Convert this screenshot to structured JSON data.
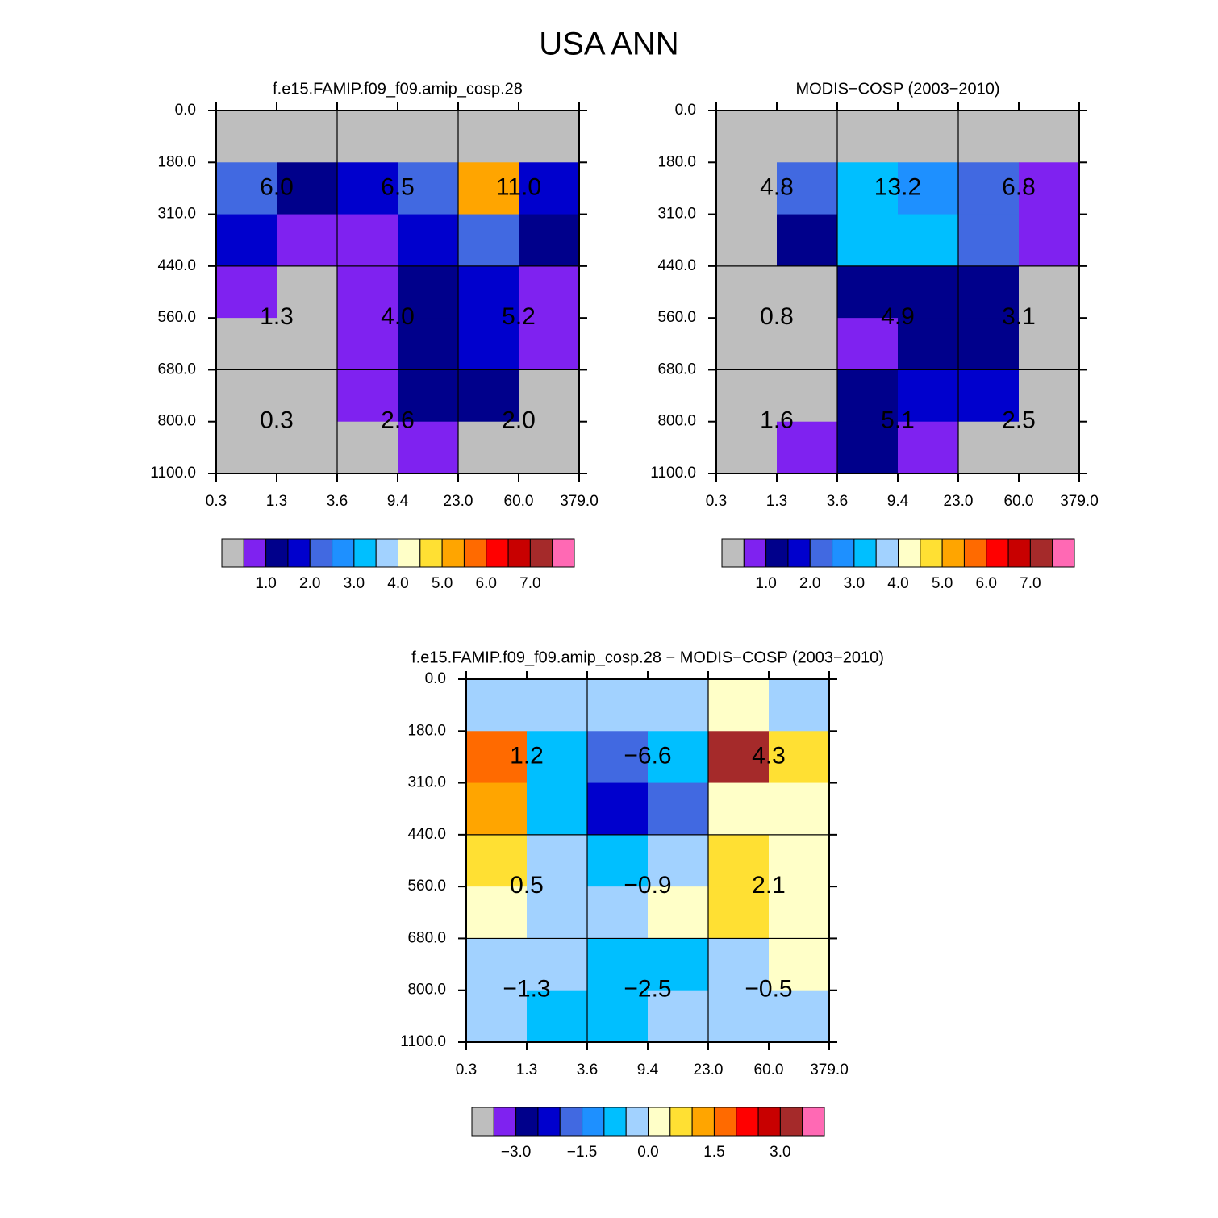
{
  "title": "USA ANN",
  "chart_data": [
    {
      "type": "heatmap",
      "title": "f.e15.FAMIP.f09_f09.amip_cosp.28",
      "x_edges": [
        "0.3",
        "1.3",
        "3.6",
        "9.4",
        "23.0",
        "60.0",
        "379.0"
      ],
      "y_edges": [
        "0.0",
        "180.0",
        "310.0",
        "440.0",
        "560.0",
        "680.0",
        "800.0",
        "1100.0"
      ],
      "values": [
        [
          0.25,
          0.25,
          0.25,
          0.25,
          0.25,
          0.25
        ],
        [
          2.25,
          1.25,
          1.75,
          2.25,
          5.25,
          1.75
        ],
        [
          1.75,
          0.75,
          0.75,
          1.75,
          2.25,
          1.25
        ],
        [
          0.75,
          0.25,
          0.75,
          1.25,
          1.75,
          0.75
        ],
        [
          0.25,
          0.25,
          0.75,
          1.25,
          1.75,
          0.75
        ],
        [
          0.25,
          0.25,
          0.75,
          1.25,
          1.25,
          0.25
        ],
        [
          0.25,
          0.25,
          0.25,
          0.75,
          0.25,
          0.25
        ]
      ],
      "annotations": {
        "values": [
          [
            6.0,
            6.5,
            11.0
          ],
          [
            1.3,
            4.0,
            5.2
          ],
          [
            0.3,
            2.6,
            2.0
          ]
        ],
        "value_labels": [
          [
            "6.0",
            "6.5",
            "11.0"
          ],
          [
            "1.3",
            "4.0",
            "5.2"
          ],
          [
            "0.3",
            "2.6",
            "2.0"
          ]
        ]
      },
      "colorbar": {
        "levels": [
          0.5,
          1.0,
          1.5,
          2.0,
          2.5,
          3.0,
          3.5,
          4.0,
          4.5,
          5.0,
          5.5,
          6.0,
          6.5,
          7.0,
          7.5
        ],
        "colors": [
          "#bebebe",
          "#7f22f0",
          "#00008b",
          "#0000cd",
          "#4169e1",
          "#1e90ff",
          "#00bfff",
          "#a2d2ff",
          "#ffffc8",
          "#ffe033",
          "#ffa500",
          "#ff6a00",
          "#ff0000",
          "#c80000",
          "#a52a2a",
          "#ff69b4"
        ],
        "ticks": [
          {
            "value": 1,
            "label": "1.0"
          },
          {
            "value": 2,
            "label": "2.0"
          },
          {
            "value": 3,
            "label": "3.0"
          },
          {
            "value": 4,
            "label": "4.0"
          },
          {
            "value": 5,
            "label": "5.0"
          },
          {
            "value": 6,
            "label": "6.0"
          },
          {
            "value": 7,
            "label": "7.0"
          }
        ]
      }
    },
    {
      "type": "heatmap",
      "title": "MODIS−COSP (2003−2010)",
      "x_edges": [
        "0.3",
        "1.3",
        "3.6",
        "9.4",
        "23.0",
        "60.0",
        "379.0"
      ],
      "y_edges": [
        "0.0",
        "180.0",
        "310.0",
        "440.0",
        "560.0",
        "680.0",
        "800.0",
        "1100.0"
      ],
      "values": [
        [
          0.25,
          0.25,
          0.25,
          0.25,
          0.25,
          0.25
        ],
        [
          0.25,
          2.25,
          3.25,
          2.75,
          2.25,
          0.75
        ],
        [
          0.25,
          1.25,
          3.25,
          3.25,
          2.25,
          0.75
        ],
        [
          0.25,
          0.25,
          1.25,
          1.25,
          1.25,
          0.25
        ],
        [
          0.25,
          0.25,
          0.75,
          1.25,
          1.25,
          0.25
        ],
        [
          0.25,
          0.25,
          1.25,
          1.75,
          1.75,
          0.25
        ],
        [
          0.25,
          0.75,
          1.25,
          0.75,
          0.25,
          0.25
        ]
      ],
      "annotations": {
        "values": [
          [
            4.8,
            13.2,
            6.8
          ],
          [
            0.8,
            4.9,
            3.1
          ],
          [
            1.6,
            5.1,
            2.5
          ]
        ],
        "value_labels": [
          [
            "4.8",
            "13.2",
            "6.8"
          ],
          [
            "0.8",
            "4.9",
            "3.1"
          ],
          [
            "1.6",
            "5.1",
            "2.5"
          ]
        ]
      },
      "colorbar": {
        "levels": [
          0.5,
          1.0,
          1.5,
          2.0,
          2.5,
          3.0,
          3.5,
          4.0,
          4.5,
          5.0,
          5.5,
          6.0,
          6.5,
          7.0,
          7.5
        ],
        "colors": [
          "#bebebe",
          "#7f22f0",
          "#00008b",
          "#0000cd",
          "#4169e1",
          "#1e90ff",
          "#00bfff",
          "#a2d2ff",
          "#ffffc8",
          "#ffe033",
          "#ffa500",
          "#ff6a00",
          "#ff0000",
          "#c80000",
          "#a52a2a",
          "#ff69b4"
        ],
        "ticks": [
          {
            "value": 1,
            "label": "1.0"
          },
          {
            "value": 2,
            "label": "2.0"
          },
          {
            "value": 3,
            "label": "3.0"
          },
          {
            "value": 4,
            "label": "4.0"
          },
          {
            "value": 5,
            "label": "5.0"
          },
          {
            "value": 6,
            "label": "6.0"
          },
          {
            "value": 7,
            "label": "7.0"
          }
        ]
      }
    },
    {
      "type": "heatmap",
      "title": "f.e15.FAMIP.f09_f09.amip_cosp.28 − MODIS−COSP (2003−2010)",
      "x_edges": [
        "0.3",
        "1.3",
        "3.6",
        "9.4",
        "23.0",
        "60.0",
        "379.0"
      ],
      "y_edges": [
        "0.0",
        "180.0",
        "310.0",
        "440.0",
        "560.0",
        "680.0",
        "800.0",
        "1100.0"
      ],
      "values": [
        [
          -0.25,
          -0.25,
          -0.25,
          -0.25,
          0.25,
          -0.25
        ],
        [
          1.75,
          -0.75,
          -1.75,
          -0.75,
          3.25,
          0.75
        ],
        [
          1.25,
          -0.75,
          -2.25,
          -1.75,
          0.25,
          0.25
        ],
        [
          0.75,
          -0.25,
          -0.75,
          -0.25,
          0.75,
          0.25
        ],
        [
          0.25,
          -0.25,
          -0.25,
          0.25,
          0.75,
          0.25
        ],
        [
          -0.25,
          -0.25,
          -0.75,
          -0.75,
          -0.25,
          0.25
        ],
        [
          -0.25,
          -0.75,
          -0.75,
          -0.25,
          -0.25,
          -0.25
        ]
      ],
      "annotations": {
        "values": [
          [
            1.2,
            -6.6,
            4.3
          ],
          [
            0.5,
            -0.9,
            2.1
          ],
          [
            -1.3,
            -2.5,
            -0.5
          ]
        ],
        "value_labels": [
          [
            "1.2",
            "−6.6",
            "4.3"
          ],
          [
            "0.5",
            "−0.9",
            "2.1"
          ],
          [
            "−1.3",
            "−2.5",
            "−0.5"
          ]
        ]
      },
      "colorbar": {
        "levels": [
          -3.5,
          -3.0,
          -2.5,
          -2.0,
          -1.5,
          -1.0,
          -0.5,
          0.0,
          0.5,
          1.0,
          1.5,
          2.0,
          2.5,
          3.0,
          3.5
        ],
        "colors": [
          "#bebebe",
          "#7f22f0",
          "#00008b",
          "#0000cd",
          "#4169e1",
          "#1e90ff",
          "#00bfff",
          "#a2d2ff",
          "#ffffc8",
          "#ffe033",
          "#ffa500",
          "#ff6a00",
          "#ff0000",
          "#c80000",
          "#a52a2a",
          "#ff69b4"
        ],
        "ticks": [
          {
            "value": -3,
            "label": "−3.0"
          },
          {
            "value": -1.5,
            "label": "−1.5"
          },
          {
            "value": 0,
            "label": "0.0"
          },
          {
            "value": 1.5,
            "label": "1.5"
          },
          {
            "value": 3,
            "label": "3.0"
          }
        ]
      }
    }
  ]
}
